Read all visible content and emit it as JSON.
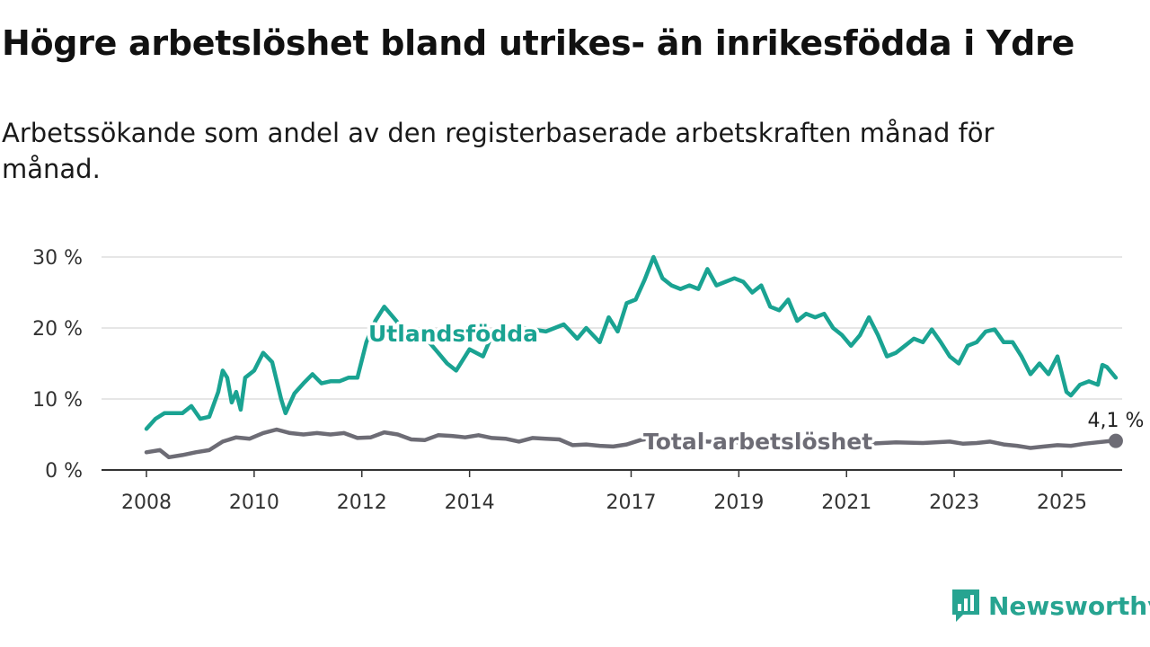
{
  "title": "Högre arbetslöshet bland utrikes- än inrikesfödda i Ydre",
  "subtitle": "Arbetssökande som andel av den registerbaserade arbetskraften månad för månad.",
  "brand": "Newsworthy",
  "colors": {
    "foreign_born": "#1aa392",
    "total": "#6d6c75",
    "grid": "#dddddd",
    "axis": "#333333",
    "brand": "#27a491"
  },
  "chart_data": {
    "type": "line",
    "title": "Högre arbetslöshet bland utrikes- än inrikesfödda i Ydre",
    "subtitle": "Arbetssökande som andel av den registerbaserade arbetskraften månad för månad.",
    "xlabel": "",
    "ylabel": "",
    "xlim": [
      "2008-01",
      "2025-05"
    ],
    "ylim": [
      0,
      30
    ],
    "y_ticks": [
      0,
      10,
      20,
      30
    ],
    "y_tick_labels": [
      "0 %",
      "10 %",
      "20 %",
      "30 %"
    ],
    "x_ticks": [
      "2008",
      "2010",
      "2012",
      "2014",
      "2017",
      "2019",
      "2021",
      "2023",
      "2025"
    ],
    "grid": "horizontal",
    "end_label": "4,1 %",
    "series": [
      {
        "name": "Utlandsfödda",
        "color": "#1aa392",
        "points": [
          [
            "2008-01",
            5.8
          ],
          [
            "2008-03",
            7.2
          ],
          [
            "2008-05",
            8.0
          ],
          [
            "2008-07",
            8.0
          ],
          [
            "2008-09",
            8.0
          ],
          [
            "2008-11",
            9.0
          ],
          [
            "2009-01",
            7.2
          ],
          [
            "2009-03",
            7.5
          ],
          [
            "2009-05",
            11.0
          ],
          [
            "2009-06",
            14.0
          ],
          [
            "2009-07",
            13.0
          ],
          [
            "2009-08",
            9.5
          ],
          [
            "2009-09",
            11.0
          ],
          [
            "2009-10",
            8.5
          ],
          [
            "2009-11",
            13.0
          ],
          [
            "2010-01",
            14.0
          ],
          [
            "2010-03",
            16.5
          ],
          [
            "2010-05",
            15.2
          ],
          [
            "2010-07",
            10.0
          ],
          [
            "2010-08",
            8.0
          ],
          [
            "2010-10",
            10.8
          ],
          [
            "2010-12",
            12.2
          ],
          [
            "2011-02",
            13.5
          ],
          [
            "2011-04",
            12.2
          ],
          [
            "2011-06",
            12.5
          ],
          [
            "2011-08",
            12.5
          ],
          [
            "2011-10",
            13.0
          ],
          [
            "2011-12",
            13.0
          ],
          [
            "2012-02",
            18.0
          ],
          [
            "2012-04",
            21.0
          ],
          [
            "2012-06",
            23.0
          ],
          [
            "2012-08",
            21.5
          ],
          [
            "2012-10",
            20.0
          ],
          [
            "2013-01",
            18.5
          ],
          [
            "2013-04",
            18.0
          ],
          [
            "2013-06",
            16.5
          ],
          [
            "2013-08",
            15.0
          ],
          [
            "2013-10",
            14.0
          ],
          [
            "2014-01",
            17.0
          ],
          [
            "2014-04",
            16.0
          ],
          [
            "2014-06",
            19.0
          ],
          [
            "2015-01",
            20.0
          ],
          [
            "2015-06",
            19.5
          ],
          [
            "2015-10",
            20.5
          ],
          [
            "2016-01",
            18.5
          ],
          [
            "2016-03",
            20.0
          ],
          [
            "2016-06",
            18.0
          ],
          [
            "2016-08",
            21.5
          ],
          [
            "2016-10",
            19.5
          ],
          [
            "2016-12",
            23.5
          ],
          [
            "2017-02",
            24.0
          ],
          [
            "2017-04",
            26.8
          ],
          [
            "2017-06",
            30.0
          ],
          [
            "2017-08",
            27.0
          ],
          [
            "2017-10",
            26.0
          ],
          [
            "2017-12",
            25.5
          ],
          [
            "2018-02",
            26.0
          ],
          [
            "2018-04",
            25.5
          ],
          [
            "2018-06",
            28.3
          ],
          [
            "2018-08",
            26.0
          ],
          [
            "2018-10",
            26.5
          ],
          [
            "2018-12",
            27.0
          ],
          [
            "2019-02",
            26.5
          ],
          [
            "2019-04",
            25.0
          ],
          [
            "2019-06",
            26.0
          ],
          [
            "2019-08",
            23.0
          ],
          [
            "2019-10",
            22.5
          ],
          [
            "2019-12",
            24.0
          ],
          [
            "2020-02",
            21.0
          ],
          [
            "2020-04",
            22.0
          ],
          [
            "2020-06",
            21.5
          ],
          [
            "2020-08",
            22.0
          ],
          [
            "2020-10",
            20.0
          ],
          [
            "2020-12",
            19.0
          ],
          [
            "2021-02",
            17.5
          ],
          [
            "2021-04",
            19.0
          ],
          [
            "2021-06",
            21.5
          ],
          [
            "2021-08",
            19.0
          ],
          [
            "2021-10",
            16.0
          ],
          [
            "2021-12",
            16.5
          ],
          [
            "2022-02",
            17.5
          ],
          [
            "2022-04",
            18.5
          ],
          [
            "2022-06",
            18.0
          ],
          [
            "2022-08",
            19.8
          ],
          [
            "2022-10",
            18.0
          ],
          [
            "2022-12",
            16.0
          ],
          [
            "2023-02",
            15.0
          ],
          [
            "2023-04",
            17.5
          ],
          [
            "2023-06",
            18.0
          ],
          [
            "2023-08",
            19.5
          ],
          [
            "2023-10",
            19.8
          ],
          [
            "2023-12",
            18.0
          ],
          [
            "2024-02",
            18.0
          ],
          [
            "2024-04",
            16.0
          ],
          [
            "2024-06",
            13.5
          ],
          [
            "2024-08",
            15.0
          ],
          [
            "2024-10",
            13.5
          ],
          [
            "2024-12",
            16.0
          ],
          [
            "2025-02",
            11.0
          ],
          [
            "2025-03",
            10.5
          ],
          [
            "2025-05",
            12.0
          ],
          [
            "2025-07",
            12.5
          ],
          [
            "2025-09",
            12.0
          ],
          [
            "2025-10",
            14.8
          ],
          [
            "2025-11",
            14.5
          ],
          [
            "2026-01",
            13.0
          ]
        ]
      },
      {
        "name": "Total arbetslöshet",
        "color": "#6d6c75",
        "points": [
          [
            "2008-01",
            2.5
          ],
          [
            "2008-04",
            2.8
          ],
          [
            "2008-06",
            1.8
          ],
          [
            "2008-09",
            2.1
          ],
          [
            "2008-12",
            2.5
          ],
          [
            "2009-03",
            2.8
          ],
          [
            "2009-06",
            4.0
          ],
          [
            "2009-09",
            4.6
          ],
          [
            "2009-12",
            4.4
          ],
          [
            "2010-03",
            5.2
          ],
          [
            "2010-06",
            5.7
          ],
          [
            "2010-09",
            5.2
          ],
          [
            "2010-12",
            5.0
          ],
          [
            "2011-03",
            5.2
          ],
          [
            "2011-06",
            5.0
          ],
          [
            "2011-09",
            5.2
          ],
          [
            "2011-12",
            4.5
          ],
          [
            "2012-03",
            4.6
          ],
          [
            "2012-06",
            5.3
          ],
          [
            "2012-09",
            5.0
          ],
          [
            "2012-12",
            4.3
          ],
          [
            "2013-03",
            4.2
          ],
          [
            "2013-06",
            4.9
          ],
          [
            "2013-09",
            4.8
          ],
          [
            "2013-12",
            4.6
          ],
          [
            "2014-03",
            4.9
          ],
          [
            "2014-06",
            4.5
          ],
          [
            "2014-09",
            4.4
          ],
          [
            "2014-12",
            4.0
          ],
          [
            "2015-03",
            4.5
          ],
          [
            "2015-06",
            4.4
          ],
          [
            "2015-09",
            4.3
          ],
          [
            "2015-12",
            3.5
          ],
          [
            "2016-03",
            3.6
          ],
          [
            "2016-06",
            3.4
          ],
          [
            "2016-09",
            3.3
          ],
          [
            "2016-12",
            3.6
          ],
          [
            "2017-03",
            4.2
          ],
          [
            "2017-06",
            4.5
          ],
          [
            "2017-09",
            4.3
          ],
          [
            "2017-12",
            4.2
          ],
          [
            "2018-06",
            4.0
          ],
          [
            "2018-12",
            3.9
          ],
          [
            "2019-06",
            3.8
          ],
          [
            "2019-12",
            3.7
          ],
          [
            "2020-06",
            3.9
          ],
          [
            "2020-12",
            3.8
          ],
          [
            "2021-06",
            3.7
          ],
          [
            "2021-12",
            3.9
          ],
          [
            "2022-06",
            3.8
          ],
          [
            "2022-12",
            4.0
          ],
          [
            "2023-03",
            3.7
          ],
          [
            "2023-06",
            3.8
          ],
          [
            "2023-09",
            4.0
          ],
          [
            "2023-12",
            3.6
          ],
          [
            "2024-03",
            3.4
          ],
          [
            "2024-06",
            3.1
          ],
          [
            "2024-09",
            3.3
          ],
          [
            "2024-12",
            3.5
          ],
          [
            "2025-03",
            3.4
          ],
          [
            "2025-06",
            3.7
          ],
          [
            "2025-09",
            3.9
          ],
          [
            "2025-12",
            4.1
          ],
          [
            "2026-01",
            4.1
          ]
        ]
      }
    ]
  }
}
